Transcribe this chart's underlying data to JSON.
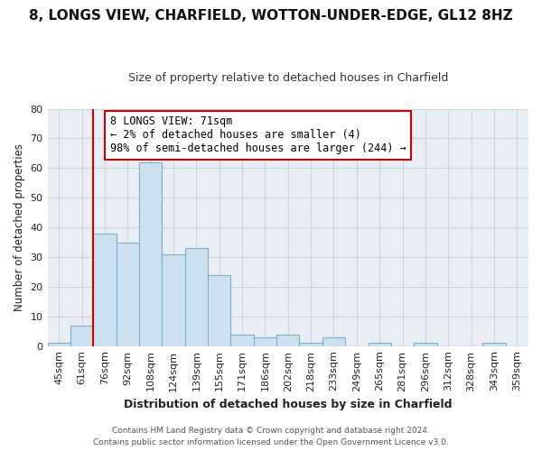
{
  "title": "8, LONGS VIEW, CHARFIELD, WOTTON-UNDER-EDGE, GL12 8HZ",
  "subtitle": "Size of property relative to detached houses in Charfield",
  "xlabel": "Distribution of detached houses by size in Charfield",
  "ylabel": "Number of detached properties",
  "bar_labels": [
    "45sqm",
    "61sqm",
    "76sqm",
    "92sqm",
    "108sqm",
    "124sqm",
    "139sqm",
    "155sqm",
    "171sqm",
    "186sqm",
    "202sqm",
    "218sqm",
    "233sqm",
    "249sqm",
    "265sqm",
    "281sqm",
    "296sqm",
    "312sqm",
    "328sqm",
    "343sqm",
    "359sqm"
  ],
  "bar_values": [
    1,
    7,
    38,
    35,
    62,
    31,
    33,
    24,
    4,
    3,
    4,
    1,
    3,
    0,
    1,
    0,
    1,
    0,
    0,
    1,
    0
  ],
  "bar_color": "#cde0f0",
  "bar_edge_color": "#7ab0cc",
  "vline_pos": 1.5,
  "vline_color": "#cc0000",
  "ylim": [
    0,
    80
  ],
  "yticks": [
    0,
    10,
    20,
    30,
    40,
    50,
    60,
    70,
    80
  ],
  "annotation_text": "8 LONGS VIEW: 71sqm\n← 2% of detached houses are smaller (4)\n98% of semi-detached houses are larger (244) →",
  "annotation_box_color": "#ffffff",
  "annotation_box_edgecolor": "#cc0000",
  "footer1": "Contains HM Land Registry data © Crown copyright and database right 2024.",
  "footer2": "Contains public sector information licensed under the Open Government Licence v3.0.",
  "figure_bg": "#ffffff",
  "plot_bg": "#e8eef4",
  "grid_color": "#c8d4de",
  "title_fontsize": 11,
  "subtitle_fontsize": 9,
  "ylabel_fontsize": 8.5,
  "xlabel_fontsize": 9,
  "tick_fontsize": 8,
  "annotation_fontsize": 8.5,
  "footer_fontsize": 6.5
}
